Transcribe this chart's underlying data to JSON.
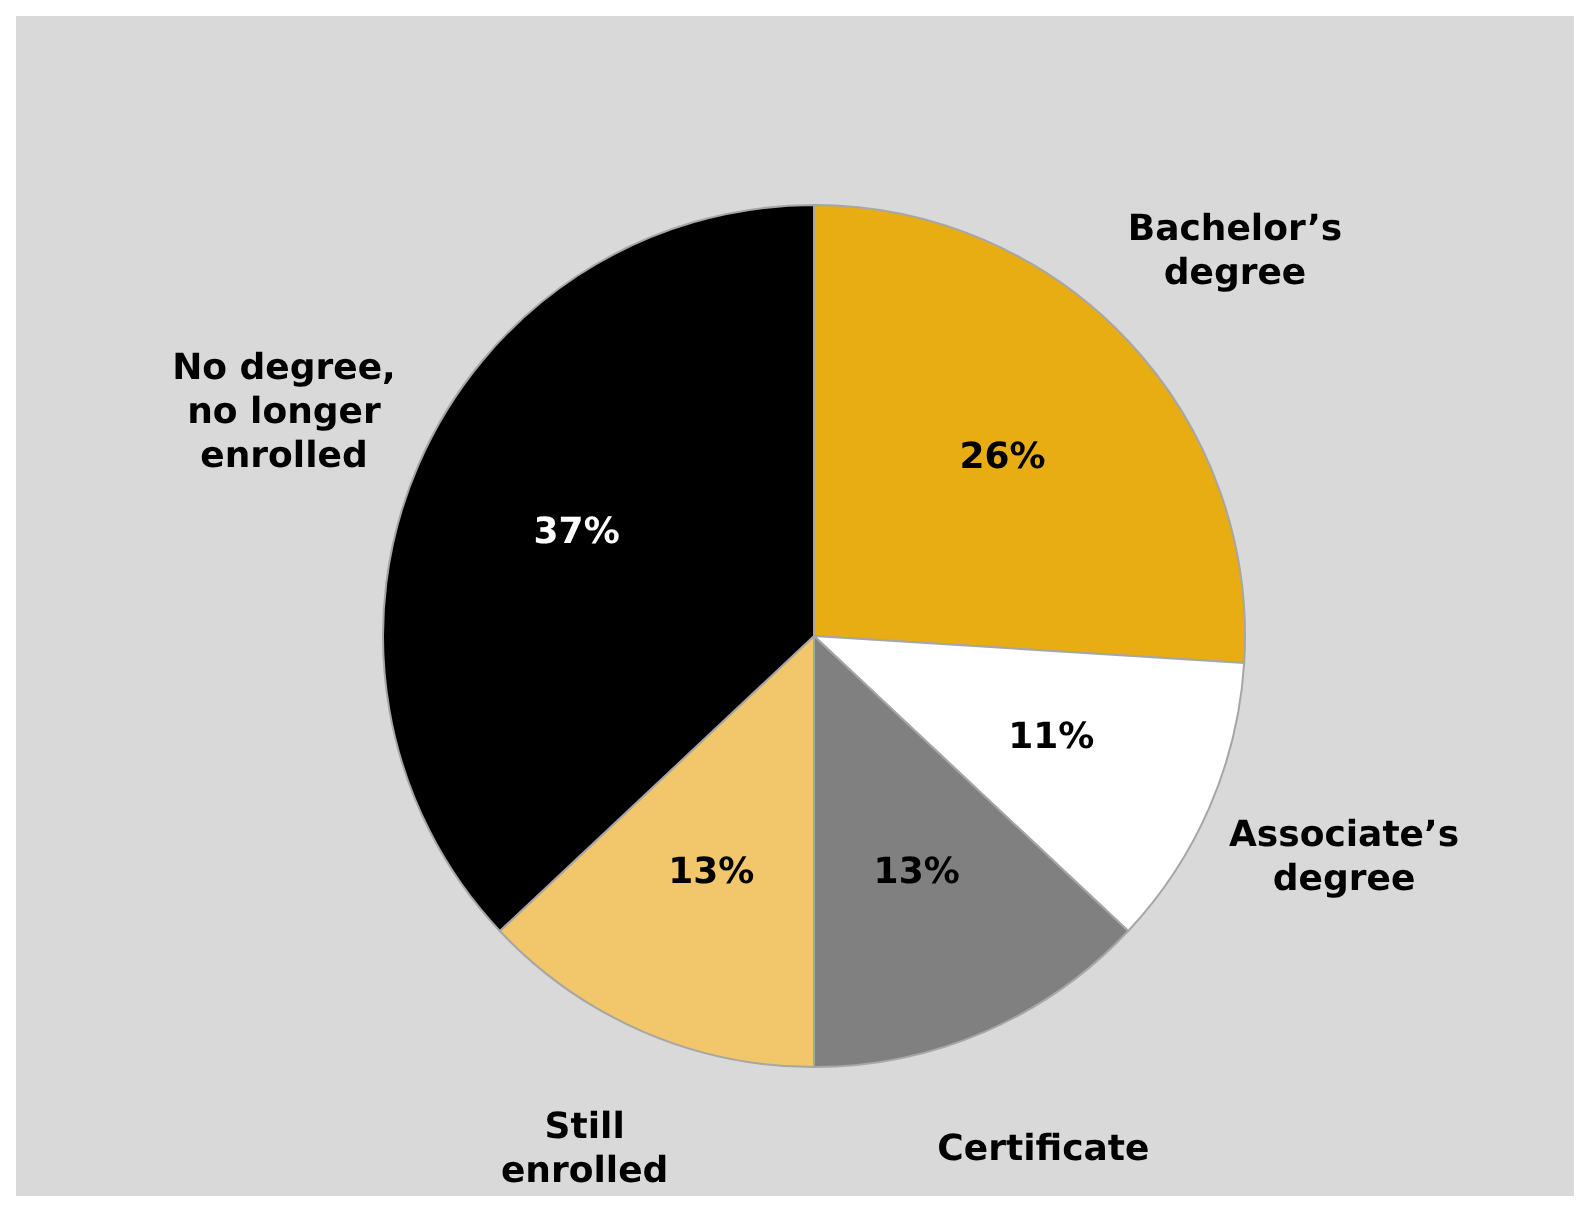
{
  "chart_data": {
    "type": "pie",
    "categories": [
      "Bachelor’s degree",
      "Associate’s degree",
      "Certificate",
      "Still enrolled",
      "No degree, no longer enrolled"
    ],
    "values": [
      26,
      11,
      13,
      13,
      37
    ],
    "colors": [
      "#e8ad12",
      "#ffffff",
      "#808080",
      "#f2c66b",
      "#000000"
    ],
    "value_labels": [
      "26%",
      "11%",
      "13%",
      "13%",
      "37%"
    ],
    "legend": false
  }
}
